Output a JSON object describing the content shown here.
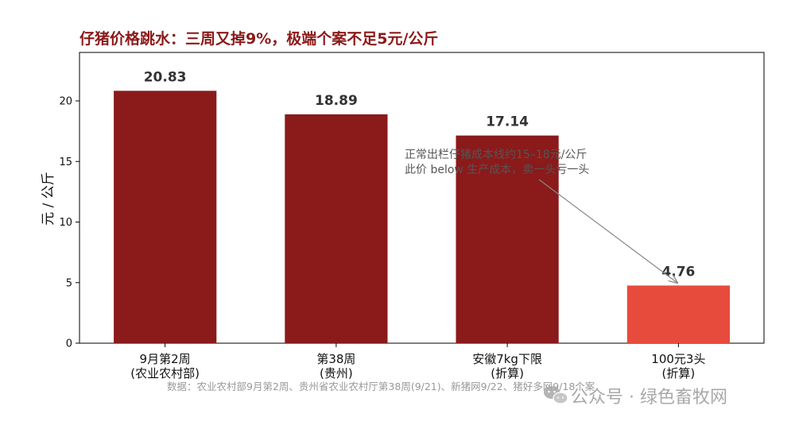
{
  "colors": {
    "title": "#8b1a1a",
    "bar_dark": "#8b1a1a",
    "bar_highlight": "#e64b3c",
    "annotation": "#555555",
    "source": "#999999",
    "watermark": "#9a9a9a"
  },
  "chart_data": {
    "type": "bar",
    "title": "仔猪价格跳水：三周又掉9%，极端个案不足5元/公斤",
    "ylabel": "元 / 公斤",
    "xlabel": "",
    "ylim": [
      0,
      24
    ],
    "yticks": [
      0,
      5,
      10,
      15,
      20
    ],
    "grid": false,
    "categories": [
      [
        "9月第2周",
        "(农业农村部)"
      ],
      [
        "第38周",
        "(贵州)"
      ],
      [
        "安徽7kg下限",
        "(折算)"
      ],
      [
        "100元3头",
        "(折算)"
      ]
    ],
    "values": [
      20.83,
      18.89,
      17.14,
      4.76
    ],
    "value_labels": [
      "20.83",
      "18.89",
      "17.14",
      "4.76"
    ],
    "bar_color_keys": [
      "bar_dark",
      "bar_dark",
      "bar_dark",
      "bar_highlight"
    ],
    "annotation": {
      "lines": [
        "正常出栏仔猪成本线约15–18元/公斤",
        "此价 below 生产成本，卖一头亏一头"
      ],
      "points_to_index": 3
    },
    "source": "数据：农业农村部9月第2周、贵州省农业农村厅第38周(9/21)、新猪网9/22、猪好多网9/18个案"
  },
  "watermark": {
    "icon": "wechat-icon",
    "text": "公众号 · 绿色畜牧网"
  }
}
